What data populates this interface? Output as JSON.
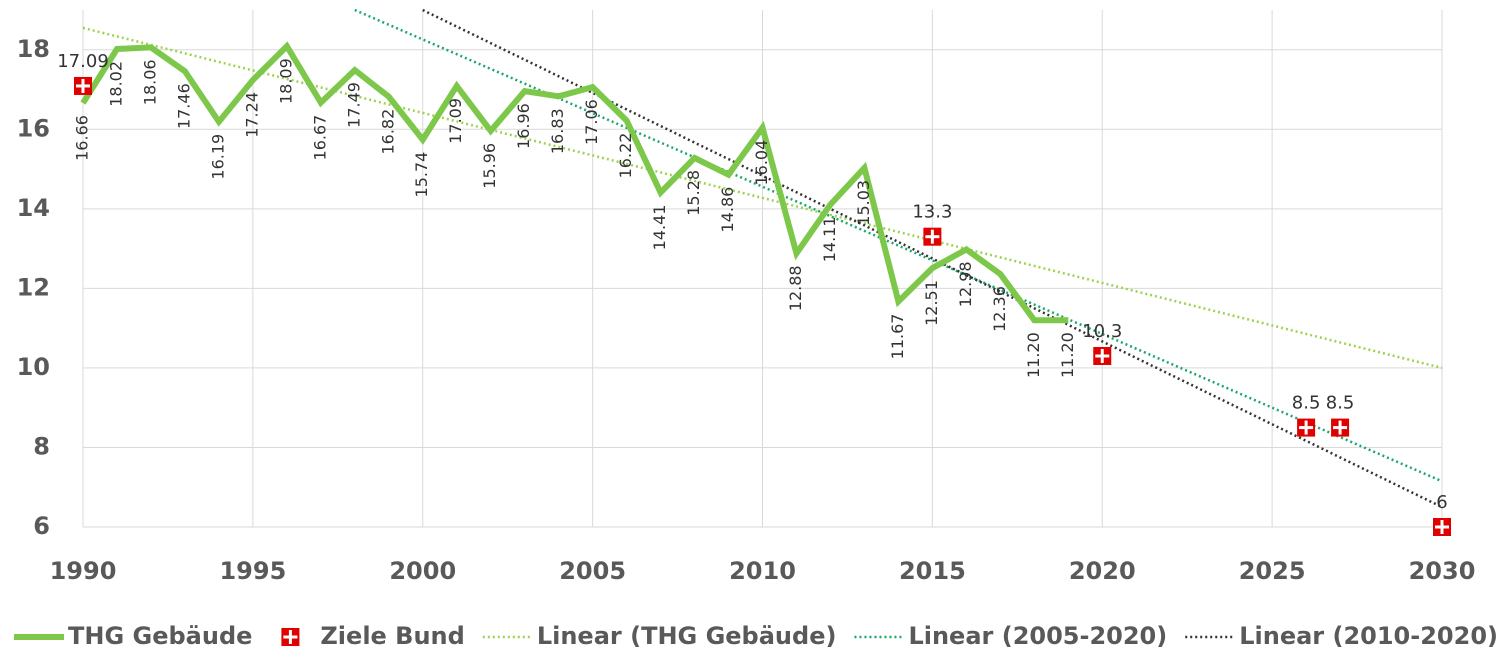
{
  "chart_data": {
    "type": "line",
    "xlim": [
      1990,
      2030
    ],
    "xticks": [
      1990,
      1995,
      2000,
      2005,
      2010,
      2015,
      2020,
      2025,
      2030
    ],
    "ylim": [
      6,
      19
    ],
    "yticks": [
      6,
      8,
      10,
      12,
      14,
      16,
      18
    ],
    "grid": true,
    "legend": "bottom",
    "series": [
      {
        "name": "THG Gebäude",
        "color": "#7dc84a",
        "style": "solid",
        "x": [
          1990,
          1991,
          1992,
          1993,
          1994,
          1995,
          1996,
          1997,
          1998,
          1999,
          2000,
          2001,
          2002,
          2003,
          2004,
          2005,
          2006,
          2007,
          2008,
          2009,
          2010,
          2011,
          2012,
          2013,
          2014,
          2015,
          2016,
          2017,
          2018,
          2019
        ],
        "values": [
          16.66,
          18.02,
          18.06,
          17.46,
          16.19,
          17.24,
          18.09,
          16.67,
          17.49,
          16.82,
          15.74,
          17.09,
          15.96,
          16.96,
          16.83,
          17.06,
          16.22,
          14.41,
          15.28,
          14.86,
          16.04,
          12.88,
          14.11,
          15.03,
          11.67,
          12.51,
          12.98,
          12.36,
          11.2,
          11.2
        ],
        "value_labels": [
          "16.66",
          "18.02",
          "18.06",
          "17.46",
          "16.19",
          "17.24",
          "18.09",
          "16.67",
          "17.49",
          "16.82",
          "15.74",
          "17.09",
          "15.96",
          "16.96",
          "16.83",
          "17.06",
          "16.22",
          "14.41",
          "15.28",
          "14.86",
          "16.04",
          "12.88",
          "14.11",
          "15.03",
          "11.67",
          "12.51",
          "12.98",
          "12.36",
          "11.20",
          "11.20"
        ]
      },
      {
        "name": "Ziele Bund",
        "color": "#e00000",
        "style": "marker",
        "x": [
          1990,
          2015,
          2020,
          2026,
          2027,
          2030
        ],
        "values": [
          17.09,
          13.3,
          10.3,
          8.5,
          8.5,
          6
        ]
      },
      {
        "name": "Linear (THG Gebäude)",
        "color": "#9bd44f",
        "style": "dotted",
        "x": [
          1990,
          2030
        ],
        "values": [
          18.55,
          10.0
        ]
      },
      {
        "name": "Linear (2005-2020)",
        "color": "#1aa86a",
        "style": "dotted",
        "x": [
          1998,
          2030
        ],
        "values": [
          19.0,
          7.15
        ]
      },
      {
        "name": "Linear (2010-2020)",
        "color": "#333333",
        "style": "dotted",
        "x": [
          2000,
          2030
        ],
        "values": [
          19.0,
          6.5
        ]
      }
    ]
  }
}
